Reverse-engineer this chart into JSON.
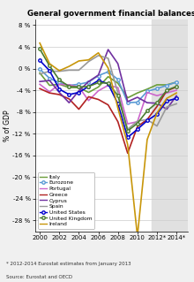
{
  "title": "General government financial balances",
  "ylabel": "% of GDP",
  "source_line1": "Source: Eurostat and OECD",
  "source_line2": "* 2012-2014 Eurostat estimates from January 2013",
  "xlim": [
    1999.5,
    2015.2
  ],
  "ylim": [
    -30,
    9
  ],
  "yticks": [
    8,
    4,
    0,
    -4,
    -8,
    -12,
    -16,
    -20,
    -24,
    -28
  ],
  "xtick_vals": [
    2000,
    2002,
    2004,
    2006,
    2008,
    2010,
    2012,
    2014
  ],
  "xtick_labels": [
    "2000",
    "2002",
    "2004",
    "2006",
    "2008",
    "2010",
    "2012*",
    "2014*"
  ],
  "shade_start": 2011.5,
  "shade_end": 2015.2,
  "series": {
    "Italy": {
      "color": "#6b9e3a",
      "marker": null,
      "linewidth": 1.2,
      "x": [
        2000,
        2001,
        2002,
        2003,
        2004,
        2005,
        2006,
        2007,
        2008,
        2009,
        2010,
        2011,
        2012,
        2013,
        2014
      ],
      "y": [
        -0.8,
        -3.1,
        -2.9,
        -3.5,
        -3.5,
        -4.4,
        -3.4,
        -1.5,
        -2.7,
        -5.4,
        -4.5,
        -3.8,
        -3.0,
        -3.0,
        -2.5
      ]
    },
    "Eurozone": {
      "color": "#5b9bd5",
      "marker": "o",
      "markersize": 2.5,
      "markerfacecolor": "white",
      "linewidth": 1.2,
      "x": [
        2000,
        2001,
        2002,
        2003,
        2004,
        2005,
        2006,
        2007,
        2008,
        2009,
        2010,
        2011,
        2012,
        2013,
        2014
      ],
      "y": [
        -0.1,
        -1.8,
        -2.6,
        -3.1,
        -2.9,
        -2.5,
        -1.3,
        -0.6,
        -2.0,
        -6.3,
        -6.2,
        -4.2,
        -3.7,
        -3.1,
        -2.5
      ]
    },
    "Portugal": {
      "color": "#cc66cc",
      "marker": null,
      "linewidth": 1.2,
      "x": [
        2000,
        2001,
        2002,
        2003,
        2004,
        2005,
        2006,
        2007,
        2008,
        2009,
        2010,
        2011,
        2012,
        2013,
        2014
      ],
      "y": [
        -2.9,
        -4.3,
        -2.9,
        -3.0,
        -3.4,
        -5.9,
        -4.1,
        -3.1,
        -3.5,
        -10.2,
        -9.8,
        -4.4,
        -5.0,
        -4.5,
        -4.0
      ]
    },
    "Greece": {
      "color": "#b22222",
      "marker": null,
      "linewidth": 1.2,
      "x": [
        2000,
        2001,
        2002,
        2003,
        2004,
        2005,
        2006,
        2007,
        2008,
        2009,
        2010,
        2011,
        2012,
        2013,
        2014
      ],
      "y": [
        -3.7,
        -4.5,
        -4.8,
        -5.6,
        -7.5,
        -5.2,
        -5.7,
        -6.7,
        -9.8,
        -15.6,
        -10.7,
        -9.4,
        -7.0,
        -4.1,
        -3.4
      ]
    },
    "Cyprus": {
      "color": "#7030a0",
      "marker": null,
      "linewidth": 1.2,
      "x": [
        2000,
        2001,
        2002,
        2003,
        2004,
        2005,
        2006,
        2007,
        2008,
        2009,
        2010,
        2011,
        2012,
        2013,
        2014
      ],
      "y": [
        -2.4,
        -2.2,
        -4.4,
        -6.3,
        -4.1,
        -2.4,
        -1.2,
        3.5,
        0.9,
        -6.1,
        -5.3,
        -6.3,
        -6.4,
        -7.5,
        -5.0
      ]
    },
    "Spain": {
      "color": "#999999",
      "marker": null,
      "linewidth": 1.2,
      "x": [
        2000,
        2001,
        2002,
        2003,
        2004,
        2005,
        2006,
        2007,
        2008,
        2009,
        2010,
        2011,
        2012,
        2013,
        2014
      ],
      "y": [
        -1.0,
        -0.5,
        -0.5,
        -0.3,
        -0.3,
        1.3,
        2.4,
        1.9,
        -4.5,
        -11.2,
        -9.7,
        -9.4,
        -10.6,
        -7.1,
        -6.5
      ]
    },
    "United States": {
      "color": "#0000cc",
      "marker": "o",
      "markersize": 2.5,
      "markerfacecolor": "white",
      "linewidth": 1.2,
      "x": [
        2000,
        2001,
        2002,
        2003,
        2004,
        2005,
        2006,
        2007,
        2008,
        2009,
        2010,
        2011,
        2012,
        2013,
        2014
      ],
      "y": [
        1.5,
        -0.4,
        -3.8,
        -4.8,
        -4.4,
        -3.3,
        -2.2,
        -2.8,
        -6.5,
        -12.7,
        -11.2,
        -9.6,
        -8.4,
        -6.0,
        -5.5
      ]
    },
    "United Kingdom": {
      "color": "#4a7c30",
      "marker": "o",
      "markersize": 2.5,
      "markerfacecolor": "white",
      "linewidth": 1.2,
      "x": [
        2000,
        2001,
        2002,
        2003,
        2004,
        2005,
        2006,
        2007,
        2008,
        2009,
        2010,
        2011,
        2012,
        2013,
        2014
      ],
      "y": [
        3.6,
        0.5,
        -2.1,
        -3.3,
        -3.4,
        -3.3,
        -2.6,
        -2.7,
        -5.0,
        -11.5,
        -10.1,
        -7.8,
        -6.3,
        -4.0,
        -3.3
      ]
    },
    "Ireland": {
      "color": "#c8960a",
      "marker": null,
      "linewidth": 1.2,
      "x": [
        2000,
        2001,
        2002,
        2003,
        2004,
        2005,
        2006,
        2007,
        2008,
        2009,
        2010,
        2011,
        2012,
        2013,
        2014
      ],
      "y": [
        4.7,
        0.9,
        -0.4,
        0.4,
        1.4,
        1.6,
        2.9,
        0.1,
        -7.3,
        -14.0,
        -30.9,
        -13.1,
        -8.2,
        -5.5,
        -4.5
      ]
    }
  },
  "legend_order": [
    "Italy",
    "Eurozone",
    "Portugal",
    "Greece",
    "Cyprus",
    "Spain",
    "United States",
    "United Kingdom",
    "Ireland"
  ],
  "background_color": "#f0f0f0",
  "plot_bg_color": "#ffffff",
  "shade_color": "#e0e0e0"
}
